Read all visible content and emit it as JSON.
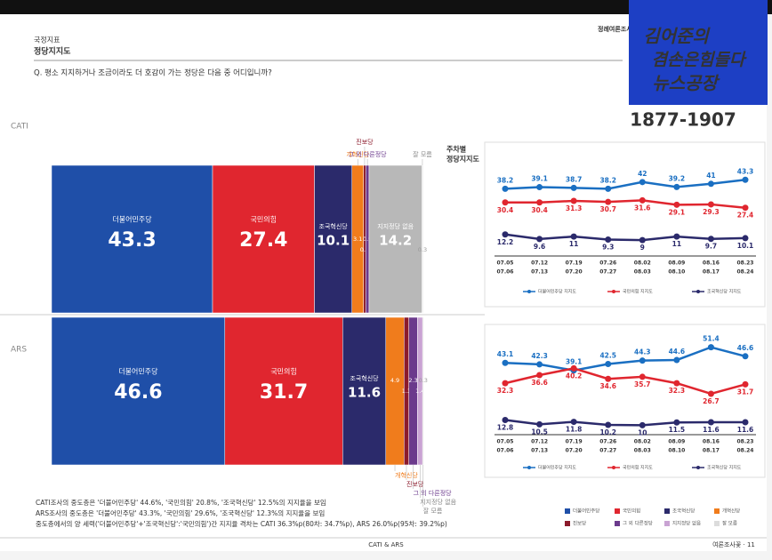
{
  "page": {
    "section": "국정지표",
    "title": "정당지지도",
    "question": "Q. 평소 지지하거나 조금이라도 더 호감이 가는 정당은 다음 중 어디입니까?",
    "report": "정례여론조사",
    "logo": [
      "김어준의",
      "겸손은힘들다",
      "뉴스공장"
    ],
    "phone": "1877-1907",
    "weekly_title": [
      "주차별",
      "정당지지도"
    ],
    "notes": [
      "CATI조사의 중도층은 '더불어민주당' 44.6%, '국민의힘' 20.8%, '조국혁신당' 12.5%의 지지율을 보임",
      "ARS조사의 중도층은 '더불어민주당' 43.3%, '국민의힘' 29.6%, '조국혁신당' 12.3%의 지지율을 보임",
      "중도층에서의 양 세력('더불어민주당'+'조국혁신당':'국민의힘')간 지지율 격차는 CATI 36.3%p(80차: 34.7%p), ARS 26.0%p(95차: 39.2%p)"
    ],
    "footer_center": "CATI & ARS",
    "footer_right": "여론조사꽃 · 11"
  },
  "chart_data": [
    {
      "type": "stacked-bar",
      "title": "CATI",
      "xlim": [
        0,
        100
      ],
      "series": [
        {
          "name": "더불어민주당",
          "color": "#1f4fa8",
          "values": [
            43.3
          ]
        },
        {
          "name": "국민의힘",
          "color": "#e0262f",
          "values": [
            27.4
          ]
        },
        {
          "name": "조국혁신당",
          "color": "#2b2a6b",
          "values": [
            10.1
          ]
        },
        {
          "name": "개혁신당",
          "color": "#f07c1c",
          "values": [
            3.1
          ]
        },
        {
          "name": "진보당",
          "color": "#8b1a2b",
          "values": [
            0.6
          ]
        },
        {
          "name": "그 외 다른정당",
          "color": "#6b3a8c",
          "values": [
            0.9
          ]
        },
        {
          "name": "지지정당 없음",
          "color": "#b8b8b8",
          "values": [
            14.2
          ]
        },
        {
          "name": "잘 모름",
          "color": "#dcdcdc",
          "values": [
            0.3
          ]
        }
      ]
    },
    {
      "type": "stacked-bar",
      "title": "ARS",
      "xlim": [
        0,
        100
      ],
      "series": [
        {
          "name": "더불어민주당",
          "color": "#1f4fa8",
          "values": [
            46.6
          ]
        },
        {
          "name": "국민의힘",
          "color": "#e0262f",
          "values": [
            31.7
          ]
        },
        {
          "name": "조국혁신당",
          "color": "#2b2a6b",
          "values": [
            11.6
          ]
        },
        {
          "name": "개혁신당",
          "color": "#f07c1c",
          "values": [
            4.9
          ]
        },
        {
          "name": "진보당",
          "color": "#8b1a2b",
          "values": [
            1.3
          ]
        },
        {
          "name": "그 외 다른정당",
          "color": "#6b3a8c",
          "values": [
            2.3
          ]
        },
        {
          "name": "지지정당 없음",
          "color": "#c9a3d3",
          "values": [
            1.4
          ]
        },
        {
          "name": "잘 모름",
          "color": "#dcdcdc",
          "values": [
            0.3
          ]
        }
      ]
    },
    {
      "type": "line",
      "ylim": [
        5,
        50
      ],
      "categories": [
        [
          "07.05",
          "07.06"
        ],
        [
          "07.12",
          "07.13"
        ],
        [
          "07.19",
          "07.20"
        ],
        [
          "07.26",
          "07.27"
        ],
        [
          "08.02",
          "08.03"
        ],
        [
          "08.09",
          "08.10"
        ],
        [
          "08.16",
          "08.17"
        ],
        [
          "08.23",
          "08.24"
        ]
      ],
      "series": [
        {
          "name": "더불어민주당 지지도",
          "color": "#1a6fc2",
          "values": [
            38.2,
            39.1,
            38.7,
            38.2,
            42.0,
            39.2,
            41.0,
            43.3
          ]
        },
        {
          "name": "국민의힘 지지도",
          "color": "#e0262f",
          "values": [
            30.4,
            30.4,
            31.3,
            30.7,
            31.6,
            29.1,
            29.3,
            27.4
          ]
        },
        {
          "name": "조국혁신당 지지도",
          "color": "#2b2a6b",
          "values": [
            12.2,
            9.6,
            11.0,
            9.3,
            9.0,
            11.0,
            9.7,
            10.1
          ]
        }
      ]
    },
    {
      "type": "line",
      "ylim": [
        5,
        55
      ],
      "categories": [
        [
          "07.05",
          "07.06"
        ],
        [
          "07.12",
          "07.13"
        ],
        [
          "07.19",
          "07.20"
        ],
        [
          "07.26",
          "07.27"
        ],
        [
          "08.02",
          "08.03"
        ],
        [
          "08.09",
          "08.10"
        ],
        [
          "08.16",
          "08.17"
        ],
        [
          "08.23",
          "08.24"
        ]
      ],
      "series": [
        {
          "name": "더불어민주당 지지도",
          "color": "#1a6fc2",
          "values": [
            43.1,
            42.3,
            39.1,
            42.5,
            44.3,
            44.6,
            51.4,
            46.6
          ]
        },
        {
          "name": "국민의힘 지지도",
          "color": "#e0262f",
          "values": [
            32.3,
            36.6,
            40.2,
            34.6,
            35.7,
            32.3,
            26.7,
            31.7
          ]
        },
        {
          "name": "조국혁신당 지지도",
          "color": "#2b2a6b",
          "values": [
            12.8,
            10.5,
            11.8,
            10.2,
            10.0,
            11.5,
            11.6,
            11.6
          ]
        }
      ]
    }
  ]
}
